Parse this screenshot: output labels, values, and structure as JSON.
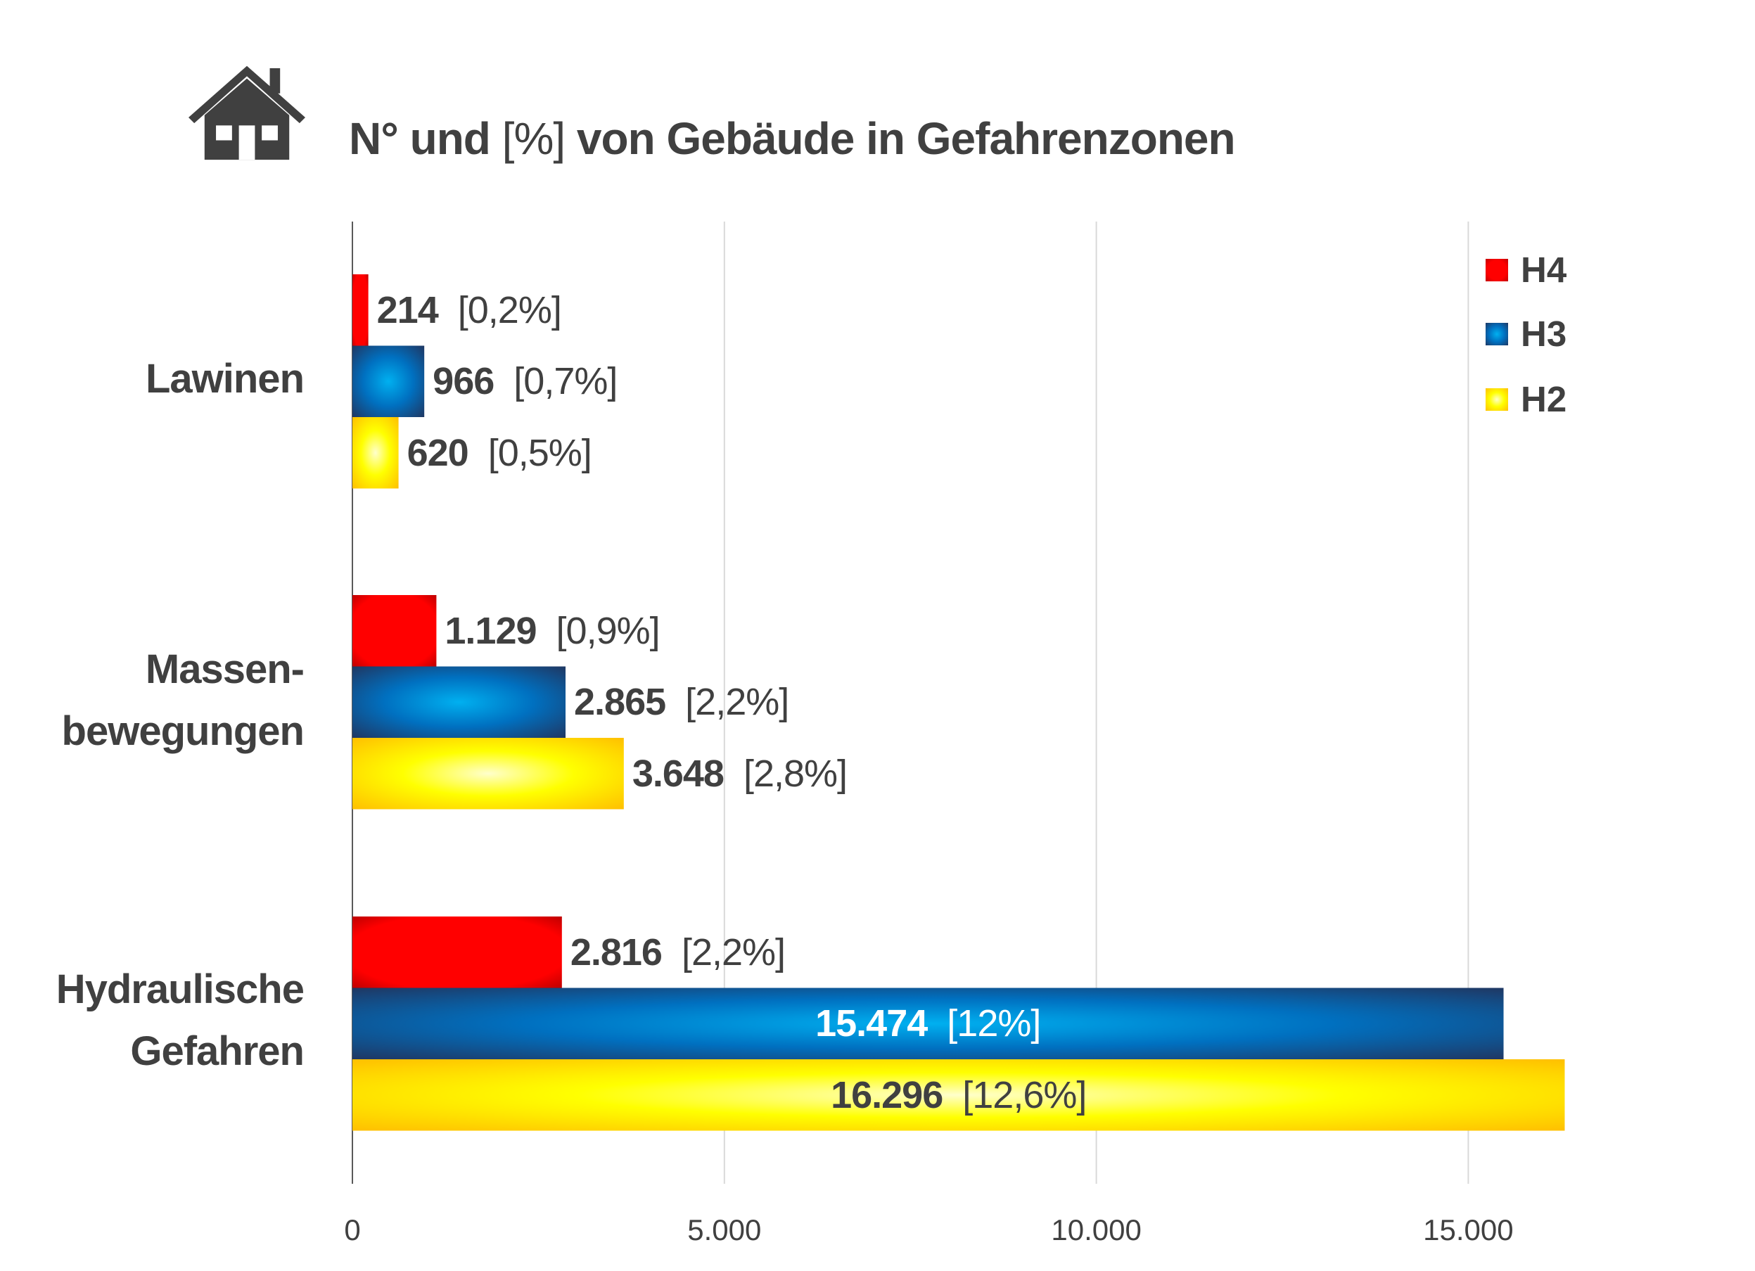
{
  "title": {
    "bold_a": "N° und ",
    "regular": "[%]",
    "bold_b": " von Gebäude in Gefahrenzonen",
    "icon": "house-icon"
  },
  "chart_data": {
    "type": "bar",
    "orientation": "horizontal",
    "title": "N° und [%] von Gebäude in Gefahrenzonen",
    "categories": [
      [
        "Lawinen"
      ],
      [
        "Massen-",
        "bewegungen"
      ],
      [
        "Hydraulische",
        "Gefahren"
      ]
    ],
    "series": [
      {
        "name": "H4",
        "color": "#ff0000",
        "values": [
          214,
          1129,
          2816
        ],
        "labels": [
          "214",
          "1.129",
          "2.816"
        ],
        "percent": [
          "[0,2%]",
          "[0,9%]",
          "[2,2%]"
        ]
      },
      {
        "name": "H3",
        "color": "#0070c0",
        "values": [
          966,
          2865,
          15474
        ],
        "labels": [
          "966",
          "2.865",
          "15.474"
        ],
        "percent": [
          "[0,7%]",
          "[2,2%]",
          "[12%]"
        ]
      },
      {
        "name": "H2",
        "color": "#ffff00",
        "values": [
          620,
          3648,
          16296
        ],
        "labels": [
          "620",
          "3.648",
          "16.296"
        ],
        "percent": [
          "[0,5%]",
          "[2,8%]",
          "[12,6%]"
        ]
      }
    ],
    "xlim": [
      0,
      17500
    ],
    "xticks": [
      0,
      5000,
      10000,
      15000
    ],
    "xtick_labels": [
      "0",
      "5.000",
      "10.000",
      "15.000"
    ],
    "grid": true,
    "legend": "top-right"
  }
}
